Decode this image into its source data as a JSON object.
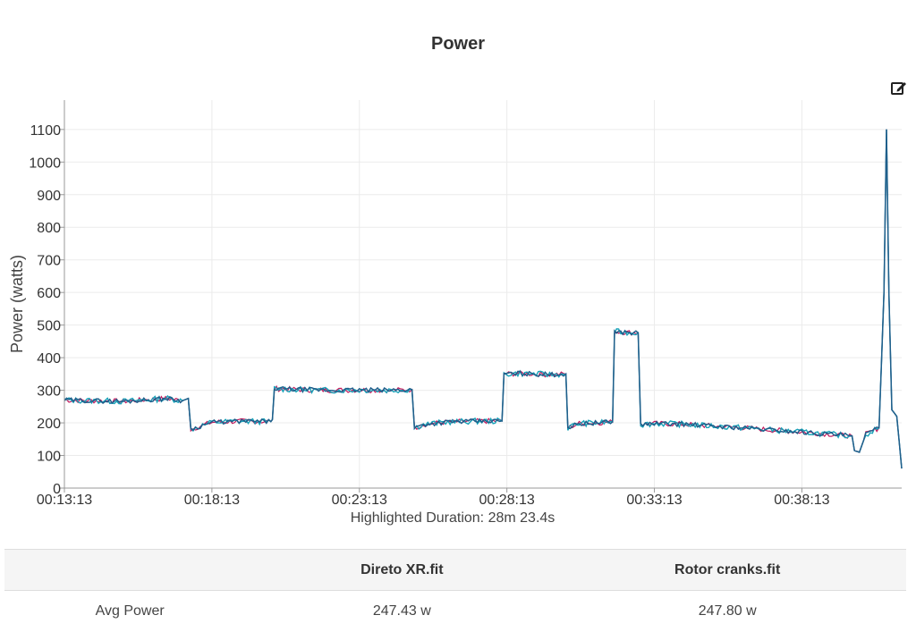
{
  "page": {
    "title": "Power",
    "edit_icon": "edit-icon",
    "subtitle": "Highlighted Duration: 28m 23.4s"
  },
  "chart_data": {
    "type": "line",
    "ylabel": "Power (watts)",
    "xlabel": "",
    "ylim": [
      0,
      1190
    ],
    "yticks": [
      0,
      100,
      200,
      300,
      400,
      500,
      600,
      700,
      800,
      900,
      1000,
      1100
    ],
    "xlim": [
      "00:13:13",
      "00:41:36"
    ],
    "xticks": [
      "00:13:13",
      "00:18:13",
      "00:23:13",
      "00:28:13",
      "00:33:13",
      "00:38:13"
    ],
    "grid": true,
    "colors": {
      "series_a": "#1f5f8b",
      "series_b": "#17a2b8",
      "series_c": "#c2185b"
    },
    "series": [
      {
        "points": [
          [
            "00:13:13",
            270
          ],
          [
            "00:14:13",
            268
          ],
          [
            "00:15:13",
            266
          ],
          [
            "00:16:13",
            272
          ],
          [
            "00:16:43",
            275
          ],
          [
            "00:17:13",
            268
          ],
          [
            "00:17:25",
            275
          ],
          [
            "00:17:30",
            180
          ],
          [
            "00:18:13",
            202
          ],
          [
            "00:19:13",
            205
          ],
          [
            "00:20:13",
            204
          ],
          [
            "00:20:16",
            210
          ],
          [
            "00:20:20",
            305
          ],
          [
            "00:21:13",
            302
          ],
          [
            "00:22:13",
            300
          ],
          [
            "00:23:13",
            301
          ],
          [
            "00:24:13",
            300
          ],
          [
            "00:25:00",
            302
          ],
          [
            "00:25:05",
            185
          ],
          [
            "00:25:23",
            195
          ],
          [
            "00:26:13",
            203
          ],
          [
            "00:27:13",
            205
          ],
          [
            "00:28:03",
            206
          ],
          [
            "00:28:07",
            350
          ],
          [
            "00:28:40",
            352
          ],
          [
            "00:29:40",
            348
          ],
          [
            "00:30:13",
            350
          ],
          [
            "00:30:17",
            185
          ],
          [
            "00:30:40",
            198
          ],
          [
            "00:31:13",
            200
          ],
          [
            "00:31:48",
            203
          ],
          [
            "00:31:52",
            480
          ],
          [
            "00:32:13",
            478
          ],
          [
            "00:32:40",
            476
          ],
          [
            "00:32:45",
            195
          ],
          [
            "00:33:13",
            198
          ],
          [
            "00:34:13",
            196
          ],
          [
            "00:35:13",
            190
          ],
          [
            "00:36:13",
            185
          ],
          [
            "00:37:13",
            178
          ],
          [
            "00:38:13",
            172
          ],
          [
            "00:39:13",
            165
          ],
          [
            "00:39:55",
            160
          ],
          [
            "00:40:00",
            115
          ],
          [
            "00:40:10",
            110
          ],
          [
            "00:40:23",
            165
          ],
          [
            "00:40:50",
            185
          ],
          [
            "00:41:00",
            600
          ],
          [
            "00:41:05",
            1100
          ],
          [
            "00:41:10",
            600
          ],
          [
            "00:41:16",
            240
          ],
          [
            "00:41:26",
            220
          ],
          [
            "00:41:36",
            60
          ]
        ]
      }
    ]
  },
  "table": {
    "headers": [
      "",
      "Direto XR.fit",
      "Rotor cranks.fit"
    ],
    "rows": [
      [
        "Avg Power",
        "247.43 w",
        "247.80 w"
      ]
    ]
  }
}
